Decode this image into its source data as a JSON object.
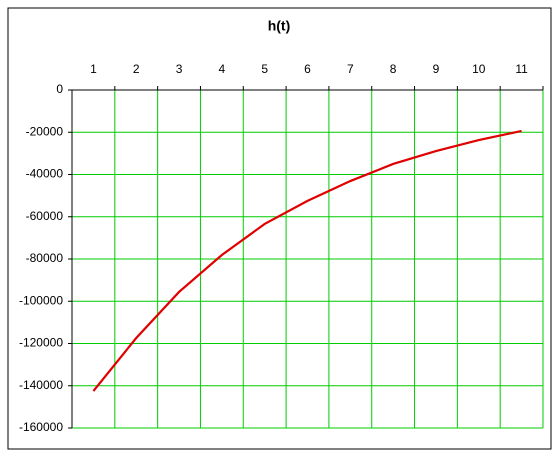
{
  "chart_data": {
    "type": "line",
    "title": "h(t)",
    "categories": [
      "1",
      "2",
      "3",
      "4",
      "5",
      "6",
      "7",
      "8",
      "9",
      "10",
      "11"
    ],
    "series": [
      {
        "name": "h(t)",
        "color": "#e00000",
        "values": [
          -142500,
          -117400,
          -95600,
          -78100,
          -63400,
          -52500,
          -43100,
          -35000,
          -28900,
          -23700,
          -19400
        ]
      }
    ],
    "ylim": [
      -160000,
      0
    ],
    "yticks": [
      0,
      -20000,
      -40000,
      -60000,
      -80000,
      -100000,
      -120000,
      -140000,
      -160000
    ],
    "grid": true,
    "grid_color": "#00cc00"
  }
}
